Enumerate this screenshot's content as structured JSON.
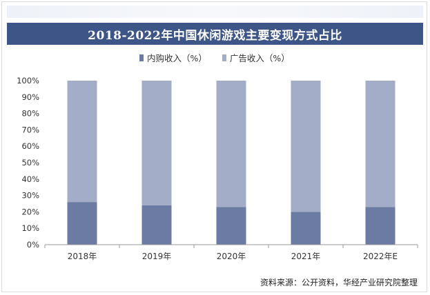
{
  "title": "2018-2022年中国休闲游戏主要变现方式占比",
  "source": "资料来源：公开资料，华经产业研究院整理",
  "colors": {
    "title_bg": "#3e5588",
    "series_inapp": "#6b7ba3",
    "series_ads": "#a3adc8",
    "axis": "#999999",
    "grid": "#e6e6e6"
  },
  "legend": [
    {
      "label": "内购收入（%）",
      "color": "#6b7ba3"
    },
    {
      "label": "广告收入（%）",
      "color": "#a3adc8"
    }
  ],
  "chart_data": {
    "type": "bar",
    "stacked": true,
    "title": "2018-2022年中国休闲游戏主要变现方式占比",
    "categories": [
      "2018年",
      "2019年",
      "2020年",
      "2021年",
      "2022年E"
    ],
    "series": [
      {
        "name": "内购收入（%）",
        "values": [
          26,
          24,
          23,
          20,
          23
        ]
      },
      {
        "name": "广告收入（%）",
        "values": [
          74,
          76,
          77,
          80,
          77
        ]
      }
    ],
    "ylim": [
      0,
      100
    ],
    "yticks": [
      "0%",
      "10%",
      "20%",
      "30%",
      "40%",
      "50%",
      "60%",
      "70%",
      "80%",
      "90%",
      "100%"
    ],
    "xlabel": "",
    "ylabel": "",
    "legend_position": "top-center",
    "grid": false
  }
}
